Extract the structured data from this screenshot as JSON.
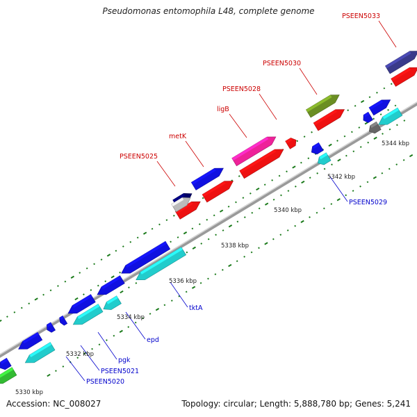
{
  "header": {
    "title": "Pseudomonas entomophila L48, complete genome"
  },
  "footer": {
    "accession": "Accession: NC_008027",
    "summary": "Topology: circular; Length: 5,888,780 bp; Genes: 5,241"
  },
  "tick_labels": [
    {
      "id": "tick-5330",
      "text": "5330 kbp"
    },
    {
      "id": "tick-5332",
      "text": "5332 kbp"
    },
    {
      "id": "tick-5334",
      "text": "5334 kbp"
    },
    {
      "id": "tick-5336",
      "text": "5336 kbp"
    },
    {
      "id": "tick-5338",
      "text": "5338 kbp"
    },
    {
      "id": "tick-5340",
      "text": "5340 kbp"
    },
    {
      "id": "tick-5342",
      "text": "5342 kbp"
    },
    {
      "id": "tick-5344",
      "text": "5344 kbp"
    }
  ],
  "gene_labels": {
    "forward": [
      {
        "id": "PSEEN5025",
        "text": "PSEEN5025"
      },
      {
        "id": "metK",
        "text": "metK"
      },
      {
        "id": "ligB",
        "text": "ligB"
      },
      {
        "id": "PSEEN5028",
        "text": "PSEEN5028"
      },
      {
        "id": "PSEEN5030",
        "text": "PSEEN5030"
      },
      {
        "id": "PSEEN5033",
        "text": "PSEEN5033"
      }
    ],
    "reverse": [
      {
        "id": "PSEEN5020",
        "text": "PSEEN5020"
      },
      {
        "id": "PSEEN5021",
        "text": "PSEEN5021"
      },
      {
        "id": "pgk",
        "text": "pgk"
      },
      {
        "id": "epd",
        "text": "epd"
      },
      {
        "id": "tktA",
        "text": "tktA"
      },
      {
        "id": "PSEEN5029",
        "text": "PSEEN5029"
      }
    ]
  },
  "colors": {
    "backbone": "#8a8a8a",
    "forward_label": "#cc0000",
    "reverse_label": "#0000cc",
    "tick": "#1a7a1a",
    "blue": "#1010e0",
    "red": "#ee1111",
    "cyan": "#22cccc",
    "magenta": "#ee2299",
    "olive": "#6b8e23",
    "navy": "#3a3a8a",
    "green": "#33bb33",
    "gray": "#666666"
  }
}
